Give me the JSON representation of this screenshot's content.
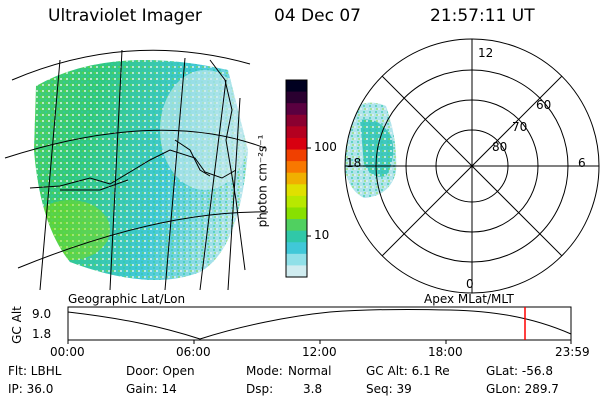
{
  "header": {
    "instrument": "Ultraviolet Imager",
    "date": "04 Dec 07",
    "time": "21:57:11 UT"
  },
  "colorbar": {
    "unit_label": "photon cm⁻²s⁻¹",
    "tick_labels": [
      "100",
      "10"
    ],
    "colors": [
      "#000020",
      "#2a0030",
      "#5a0040",
      "#8a0030",
      "#b40020",
      "#d80010",
      "#f04000",
      "#f87800",
      "#f0b000",
      "#e0e000",
      "#b8e800",
      "#88e000",
      "#50d060",
      "#30c8a8",
      "#40c8d8",
      "#90e0e8",
      "#d0ecf0"
    ]
  },
  "geo_panel": {
    "label": "Geographic Lat/Lon"
  },
  "polar_panel": {
    "label": "Apex MLat/MLT",
    "mlt_labels": [
      "12",
      "18",
      "6",
      "0"
    ],
    "mlat_labels": [
      "60",
      "70",
      "80"
    ]
  },
  "altitude_strip": {
    "axis_label": "GC Alt",
    "y_ticks": [
      "9.0",
      "1.8"
    ],
    "x_ticks": [
      "00:00",
      "06:00",
      "12:00",
      "18:00",
      "23:59"
    ],
    "current_marker_color": "#ff0000"
  },
  "status": {
    "flt": "Flt: LBHL",
    "ip": "IP: 36.0",
    "door": "Door: Open",
    "gain": "Gain: 14",
    "mode_label": "Mode:",
    "mode_value": "Normal",
    "dsp_label": "Dsp:",
    "dsp_value": "3.8",
    "gc_alt": "GC Alt: 6.1 Re",
    "seq": "Seq: 39",
    "glat": "GLat: -56.8",
    "glon": "GLon: 289.7"
  }
}
